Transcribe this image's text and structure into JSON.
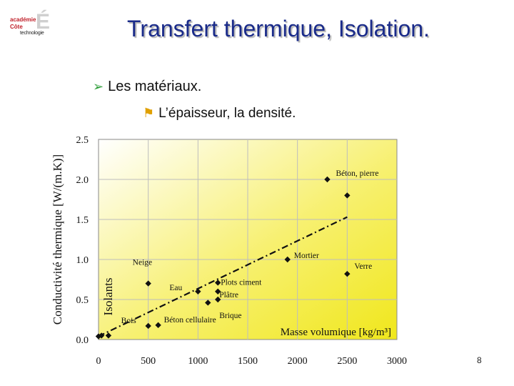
{
  "header": {
    "logo_line1": "académie",
    "logo_line2": "Côte",
    "logo_line3": "technologie",
    "logo_letter": "É",
    "title": "Transfert thermique, Isolation."
  },
  "bullets": {
    "level1": "Les matériaux.",
    "level2": "L’épaisseur, la densité."
  },
  "page_number": "8",
  "chart_data": {
    "type": "scatter",
    "xlabel": "Masse volumique [kg/m³]",
    "ylabel": "Conductivité thermique [W/(m.K)]",
    "xlim": [
      0,
      3000
    ],
    "ylim": [
      0,
      2.5
    ],
    "xticks": [
      "0",
      "500",
      "1000",
      "1500",
      "2000",
      "2500",
      "3000"
    ],
    "yticks": [
      "0.0",
      "0.5",
      "1.0",
      "1.5",
      "2.0",
      "2.5"
    ],
    "grid": true,
    "region_label": "Isolants",
    "points": [
      {
        "x": 0,
        "y": 0.04,
        "label": ""
      },
      {
        "x": 30,
        "y": 0.05,
        "label": ""
      },
      {
        "x": 100,
        "y": 0.05,
        "label": ""
      },
      {
        "x": 500,
        "y": 0.17,
        "label": "Bois"
      },
      {
        "x": 500,
        "y": 0.7,
        "label": "Neige"
      },
      {
        "x": 600,
        "y": 0.18,
        "label": "Béton cellulaire"
      },
      {
        "x": 1000,
        "y": 0.6,
        "label": "Eau"
      },
      {
        "x": 1100,
        "y": 0.46,
        "label": ""
      },
      {
        "x": 1200,
        "y": 0.71,
        "label": "Plots ciment"
      },
      {
        "x": 1200,
        "y": 0.6,
        "label": "Plâtre"
      },
      {
        "x": 1200,
        "y": 0.5,
        "label": "Brique"
      },
      {
        "x": 1900,
        "y": 1.0,
        "label": "Mortier"
      },
      {
        "x": 2300,
        "y": 2.0,
        "label": "Béton, pierre"
      },
      {
        "x": 2500,
        "y": 1.8,
        "label": ""
      },
      {
        "x": 2500,
        "y": 0.82,
        "label": "Verre"
      }
    ],
    "trend_line": {
      "x": [
        0,
        2500
      ],
      "y": [
        0.04,
        1.53
      ]
    },
    "colors": {
      "gradient_top": "#ffffff",
      "gradient_bottom": "#f2ea1a",
      "marker": "#111111"
    }
  }
}
